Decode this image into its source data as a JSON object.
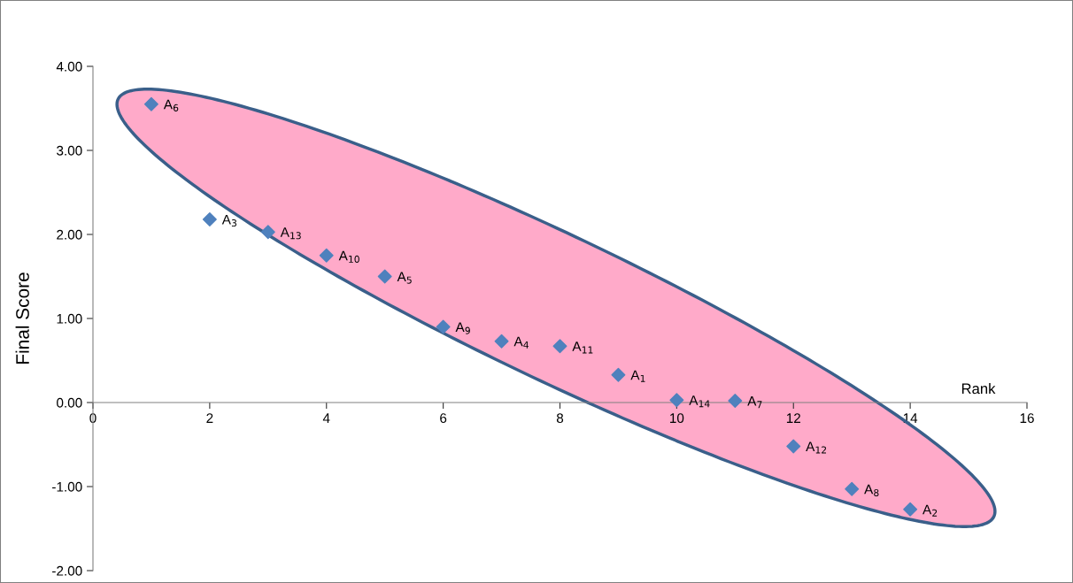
{
  "chart_data": {
    "type": "scatter",
    "xlabel": "Rank",
    "ylabel": "Final Score",
    "x": [
      1,
      2,
      3,
      4,
      5,
      6,
      7,
      8,
      9,
      10,
      11,
      12,
      13,
      14
    ],
    "series": [
      {
        "color": "#4f81bd",
        "values": [
          3.55,
          2.18,
          2.03,
          1.75,
          1.5,
          0.9,
          0.73,
          0.67,
          0.33,
          0.03,
          0.02,
          -0.52,
          -1.03,
          -1.27
        ]
      }
    ],
    "marker": "diamond",
    "xlim": [
      0,
      16
    ],
    "xticks": [
      0,
      2,
      4,
      6,
      8,
      10,
      12,
      14,
      16
    ],
    "ylim": [
      -2,
      4
    ],
    "yticks": [
      {
        "value": -2,
        "label": "-2.00"
      },
      {
        "value": -1,
        "label": "-1.00"
      },
      {
        "value": 0,
        "label": "0.00"
      },
      {
        "value": 1,
        "label": "1.00"
      },
      {
        "value": 2,
        "label": "2.00"
      },
      {
        "value": 3,
        "label": "3.00"
      },
      {
        "value": 4,
        "label": "4.00"
      }
    ],
    "grid": false,
    "legend": false,
    "annotations": [
      {
        "text": "A$_{6}$",
        "x": 1,
        "y": 3.55
      },
      {
        "text": "A$_{3}$",
        "x": 2,
        "y": 2.18
      },
      {
        "text": "A$_{13}$",
        "x": 3,
        "y": 2.03
      },
      {
        "text": "A$_{10}$",
        "x": 4,
        "y": 1.75
      },
      {
        "text": "A$_{5}$",
        "x": 5,
        "y": 1.5
      },
      {
        "text": "A$_{9}$",
        "x": 6,
        "y": 0.9
      },
      {
        "text": "A$_{4}$",
        "x": 7,
        "y": 0.73
      },
      {
        "text": "A$_{11}$",
        "x": 8,
        "y": 0.67
      },
      {
        "text": "A$_{1}$",
        "x": 9,
        "y": 0.33
      },
      {
        "text": "A$_{14}$",
        "x": 10,
        "y": 0.03
      },
      {
        "text": "A$_{7}$",
        "x": 11,
        "y": 0.02
      },
      {
        "text": "A$_{12}$",
        "x": 12,
        "y": -0.52
      },
      {
        "text": "A$_{8}$",
        "x": 13,
        "y": -1.03
      },
      {
        "text": "A$_{2}$",
        "x": 14,
        "y": -1.27
      }
    ]
  }
}
